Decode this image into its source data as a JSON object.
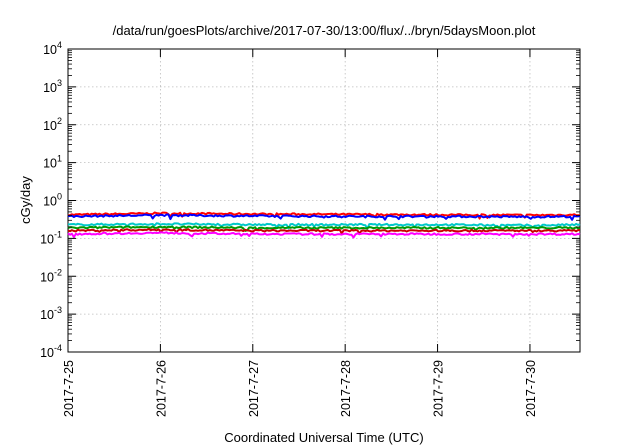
{
  "chart_data": {
    "type": "line",
    "title": "/data/run/goesPlots/archive/2017-07-30/13:00/flux/../bryn/5daysMoon.plot",
    "xlabel": "Coordinated Universal Time (UTC)",
    "ylabel": "cGy/day",
    "yscale": "log",
    "ylim": [
      0.0001,
      10000
    ],
    "y_ticks": [
      {
        "base": "10",
        "exp": "-4",
        "value": 0.0001
      },
      {
        "base": "10",
        "exp": "-3",
        "value": 0.001
      },
      {
        "base": "10",
        "exp": "-2",
        "value": 0.01
      },
      {
        "base": "10",
        "exp": "-1",
        "value": 0.1
      },
      {
        "base": "10",
        "exp": "0",
        "value": 1
      },
      {
        "base": "10",
        "exp": "1",
        "value": 10
      },
      {
        "base": "10",
        "exp": "2",
        "value": 100
      },
      {
        "base": "10",
        "exp": "3",
        "value": 1000
      },
      {
        "base": "10",
        "exp": "4",
        "value": 10000
      }
    ],
    "x_tick_labels": [
      "2017-7-25",
      "2017-7-26",
      "2017-7-27",
      "2017-7-28",
      "2017-7-29",
      "2017-7-30"
    ],
    "xlim": [
      "2017-07-25 00:00",
      "2017-07-30 13:00"
    ],
    "grid": true,
    "legend": "none",
    "series": [
      {
        "color": "#ff0000",
        "x": [
          "2017-07-25",
          "2017-07-26",
          "2017-07-27",
          "2017-07-28",
          "2017-07-29",
          "2017-07-30",
          "2017-07-30 13:00"
        ],
        "values": [
          0.42,
          0.46,
          0.44,
          0.43,
          0.42,
          0.41,
          0.42
        ]
      },
      {
        "color": "#0000ff",
        "x": [
          "2017-07-25",
          "2017-07-26",
          "2017-07-27",
          "2017-07-28",
          "2017-07-29",
          "2017-07-30",
          "2017-07-30 13:00"
        ],
        "values": [
          0.38,
          0.41,
          0.39,
          0.38,
          0.38,
          0.37,
          0.38
        ]
      },
      {
        "color": "#00c8c8",
        "x": [
          "2017-07-25",
          "2017-07-26",
          "2017-07-27",
          "2017-07-28",
          "2017-07-29",
          "2017-07-30",
          "2017-07-30 13:00"
        ],
        "values": [
          0.23,
          0.24,
          0.23,
          0.23,
          0.23,
          0.22,
          0.23
        ]
      },
      {
        "color": "#009900",
        "x": [
          "2017-07-25",
          "2017-07-26",
          "2017-07-27",
          "2017-07-28",
          "2017-07-29",
          "2017-07-30",
          "2017-07-30 13:00"
        ],
        "values": [
          0.19,
          0.2,
          0.19,
          0.19,
          0.19,
          0.19,
          0.19
        ]
      },
      {
        "color": "#cc0000",
        "x": [
          "2017-07-25",
          "2017-07-26",
          "2017-07-27",
          "2017-07-28",
          "2017-07-29",
          "2017-07-30",
          "2017-07-30 13:00"
        ],
        "values": [
          0.16,
          0.17,
          0.16,
          0.16,
          0.16,
          0.16,
          0.16
        ]
      },
      {
        "color": "#ff00ff",
        "x": [
          "2017-07-25",
          "2017-07-26",
          "2017-07-27",
          "2017-07-28",
          "2017-07-29",
          "2017-07-30",
          "2017-07-30 13:00"
        ],
        "values": [
          0.13,
          0.14,
          0.13,
          0.13,
          0.13,
          0.13,
          0.13
        ]
      }
    ]
  }
}
